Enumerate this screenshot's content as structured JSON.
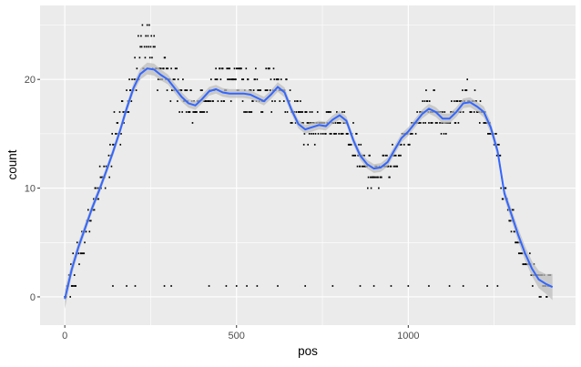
{
  "chart_data": {
    "type": "scatter",
    "xlabel": "pos",
    "ylabel": "count",
    "xlim": [
      -72,
      1487
    ],
    "ylim": [
      -2.6,
      26.8
    ],
    "x_ticks": [
      0,
      500,
      1000
    ],
    "y_ticks": [
      0,
      10,
      20
    ],
    "x_tick_labels": [
      "0",
      "500",
      "1000"
    ],
    "y_tick_labels": [
      "0",
      "10",
      "20"
    ],
    "x_minor": [
      250,
      750,
      1250
    ],
    "y_minor": [
      5,
      15,
      25
    ],
    "grid": true,
    "legend": "none",
    "colors": {
      "panel": "#ebebeb",
      "grid": "#ffffff",
      "points": "#000000",
      "smooth_line": "#3366ff",
      "ribbon": "#bdbdbd"
    },
    "points_profile": [
      [
        0,
        0
      ],
      [
        10,
        1
      ],
      [
        20,
        1
      ],
      [
        35,
        3
      ],
      [
        50,
        5
      ],
      [
        70,
        7
      ],
      [
        90,
        10
      ],
      [
        110,
        12
      ],
      [
        135,
        15
      ],
      [
        160,
        18
      ],
      [
        185,
        19
      ],
      [
        210,
        23
      ],
      [
        230,
        25
      ],
      [
        250,
        24
      ],
      [
        270,
        22
      ],
      [
        300,
        21
      ],
      [
        330,
        20
      ],
      [
        360,
        18
      ],
      [
        390,
        18
      ],
      [
        420,
        19
      ],
      [
        450,
        21
      ],
      [
        480,
        21
      ],
      [
        510,
        20
      ],
      [
        540,
        20
      ],
      [
        570,
        20
      ],
      [
        600,
        20
      ],
      [
        630,
        20
      ],
      [
        660,
        18
      ],
      [
        690,
        17
      ],
      [
        720,
        16
      ],
      [
        750,
        16
      ],
      [
        780,
        16
      ],
      [
        810,
        17
      ],
      [
        840,
        15
      ],
      [
        870,
        12
      ],
      [
        900,
        11
      ],
      [
        930,
        12
      ],
      [
        960,
        13
      ],
      [
        990,
        15
      ],
      [
        1020,
        16
      ],
      [
        1050,
        18
      ],
      [
        1080,
        18
      ],
      [
        1110,
        17
      ],
      [
        1140,
        18
      ],
      [
        1170,
        19
      ],
      [
        1200,
        18
      ],
      [
        1230,
        17
      ],
      [
        1260,
        14
      ],
      [
        1290,
        9
      ],
      [
        1320,
        5
      ],
      [
        1350,
        3
      ],
      [
        1380,
        2
      ],
      [
        1410,
        1
      ]
    ],
    "outlier_points": [
      [
        140,
        1
      ],
      [
        180,
        1
      ],
      [
        205,
        1
      ],
      [
        290,
        1
      ],
      [
        310,
        1
      ],
      [
        420,
        1
      ],
      [
        470,
        1
      ],
      [
        500,
        1
      ],
      [
        530,
        1
      ],
      [
        560,
        1
      ],
      [
        620,
        1
      ],
      [
        700,
        1
      ],
      [
        780,
        1
      ],
      [
        860,
        1
      ],
      [
        900,
        1
      ],
      [
        950,
        1
      ],
      [
        1000,
        1
      ],
      [
        1060,
        1
      ],
      [
        1120,
        1
      ],
      [
        1160,
        1
      ],
      [
        1230,
        1
      ],
      [
        1260,
        1
      ]
    ],
    "smooth": {
      "x": [
        0,
        20,
        40,
        60,
        80,
        100,
        120,
        140,
        160,
        180,
        200,
        220,
        240,
        260,
        280,
        300,
        320,
        340,
        360,
        380,
        400,
        420,
        440,
        460,
        480,
        500,
        520,
        540,
        560,
        580,
        600,
        620,
        640,
        660,
        680,
        700,
        720,
        740,
        760,
        780,
        800,
        820,
        840,
        860,
        880,
        900,
        920,
        940,
        960,
        980,
        1000,
        1020,
        1040,
        1060,
        1080,
        1100,
        1120,
        1140,
        1160,
        1180,
        1200,
        1220,
        1240,
        1260,
        1280,
        1300,
        1320,
        1340,
        1360,
        1380,
        1400,
        1420
      ],
      "y": [
        -0.2,
        2.5,
        4.6,
        6.4,
        8.2,
        9.8,
        11.5,
        13.3,
        15.2,
        17.3,
        19.2,
        20.5,
        21,
        20.9,
        20.4,
        20.0,
        19.2,
        18.4,
        17.8,
        17.6,
        18.2,
        18.9,
        19.1,
        18.8,
        18.7,
        18.7,
        18.7,
        18.6,
        18.3,
        18.0,
        18.6,
        19.3,
        18.8,
        17.2,
        15.9,
        15.4,
        15.6,
        15.8,
        15.7,
        16.3,
        16.7,
        16.2,
        14.4,
        13.0,
        12.2,
        11.8,
        11.9,
        12.4,
        13.5,
        14.6,
        15.2,
        16.0,
        16.8,
        17.3,
        17.0,
        16.4,
        16.4,
        17.0,
        17.8,
        17.9,
        17.5,
        17.0,
        15.6,
        13.4,
        9.5,
        7.6,
        5.7,
        4.0,
        2.6,
        1.6,
        1.2,
        0.9
      ],
      "se": [
        0.9,
        0.6,
        0.5,
        0.45,
        0.4,
        0.4,
        0.4,
        0.4,
        0.4,
        0.45,
        0.45,
        0.5,
        0.55,
        0.55,
        0.5,
        0.45,
        0.45,
        0.45,
        0.4,
        0.4,
        0.4,
        0.4,
        0.4,
        0.4,
        0.4,
        0.4,
        0.4,
        0.4,
        0.4,
        0.4,
        0.4,
        0.45,
        0.45,
        0.4,
        0.4,
        0.4,
        0.4,
        0.4,
        0.4,
        0.4,
        0.4,
        0.4,
        0.4,
        0.4,
        0.4,
        0.4,
        0.4,
        0.4,
        0.4,
        0.4,
        0.4,
        0.4,
        0.4,
        0.45,
        0.45,
        0.45,
        0.45,
        0.45,
        0.45,
        0.45,
        0.45,
        0.5,
        0.5,
        0.5,
        0.5,
        0.55,
        0.6,
        0.65,
        0.7,
        0.8,
        0.9,
        1.2
      ]
    }
  }
}
